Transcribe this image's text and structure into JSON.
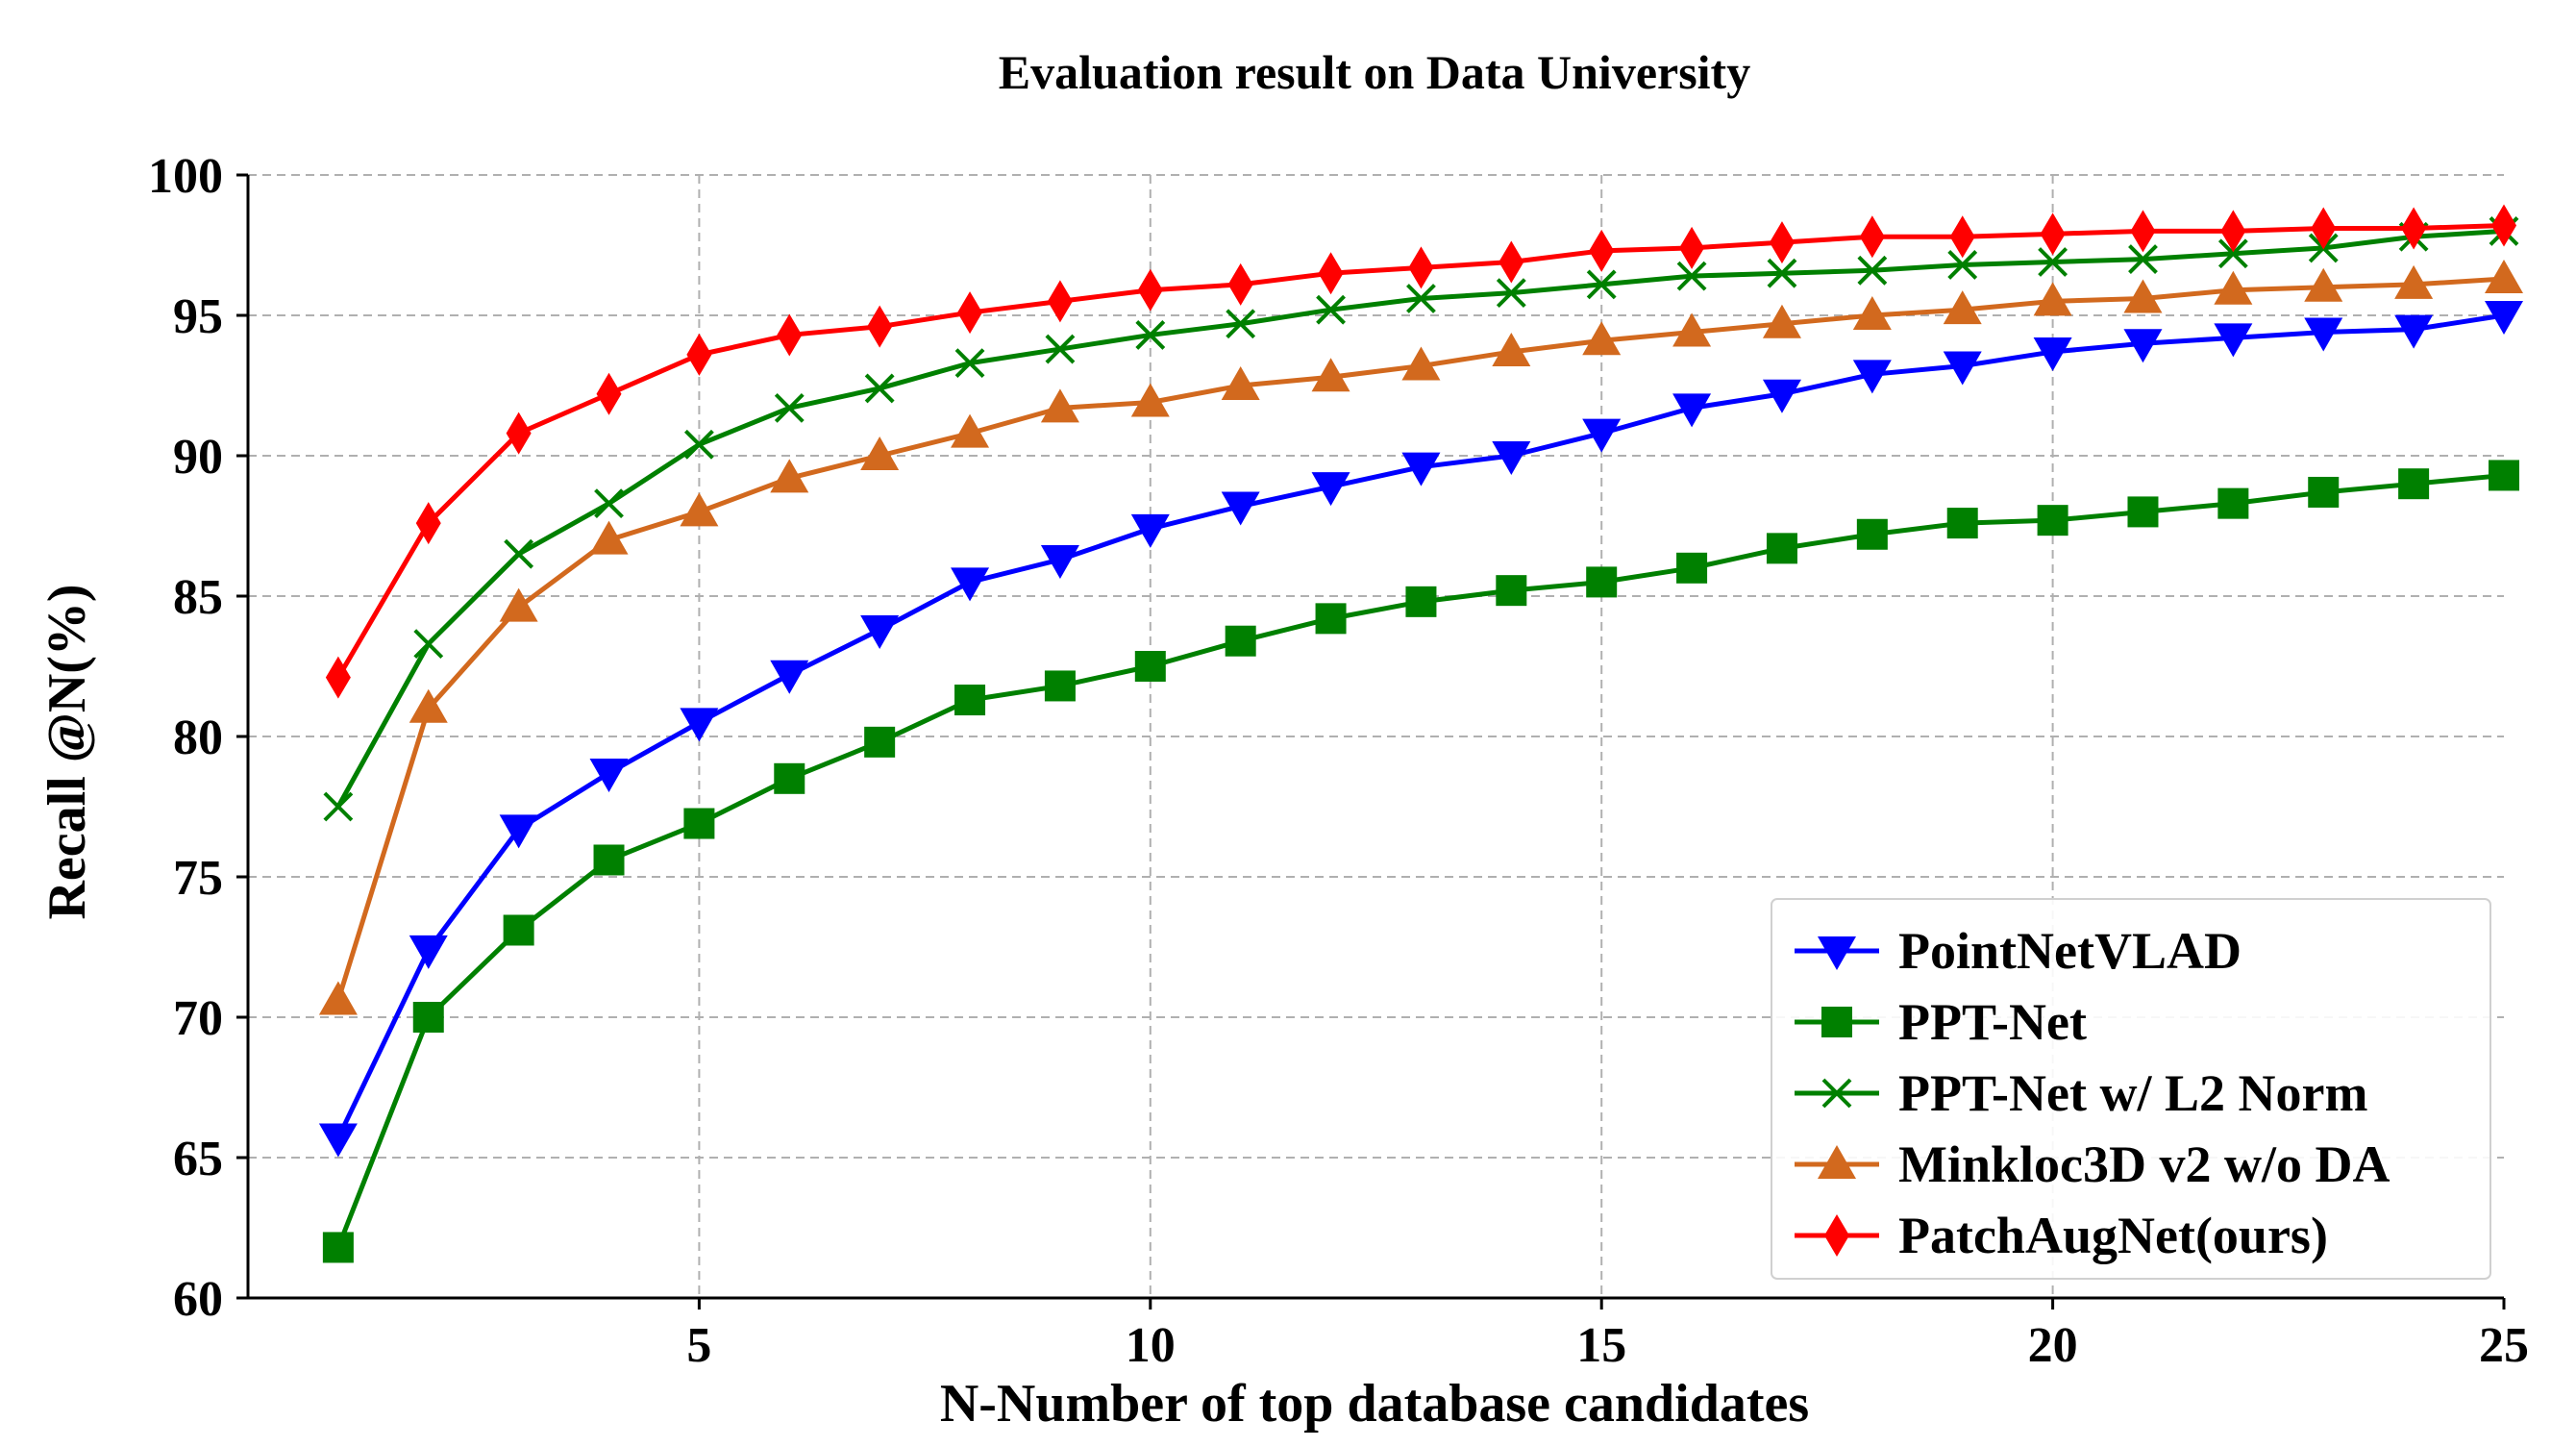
{
  "chart_data": {
    "type": "line",
    "title": "Evaluation result on Data University",
    "xlabel": "N-Number of top database candidates",
    "ylabel": "Recall @N(%)",
    "xlim": [
      0,
      25
    ],
    "ylim": [
      60,
      100
    ],
    "xticks": [
      5,
      10,
      15,
      20,
      25
    ],
    "yticks": [
      60,
      65,
      70,
      75,
      80,
      85,
      90,
      95,
      100
    ],
    "grid": true,
    "legend_position": "lower-right",
    "x": [
      1,
      2,
      3,
      4,
      5,
      6,
      7,
      8,
      9,
      10,
      11,
      12,
      13,
      14,
      15,
      16,
      17,
      18,
      19,
      20,
      21,
      22,
      23,
      24,
      25
    ],
    "series": [
      {
        "name": "PointNetVLAD",
        "color": "#0000ff",
        "marker": "triangle-down",
        "values": [
          65.7,
          72.4,
          76.7,
          78.7,
          80.5,
          82.2,
          83.8,
          85.5,
          86.3,
          87.4,
          88.2,
          88.9,
          89.6,
          90.0,
          90.8,
          91.7,
          92.2,
          92.9,
          93.2,
          93.7,
          94.0,
          94.2,
          94.4,
          94.5,
          95.0
        ]
      },
      {
        "name": "PPT-Net",
        "color": "#008000",
        "marker": "square",
        "values": [
          61.8,
          70.0,
          73.1,
          75.6,
          76.9,
          78.5,
          79.8,
          81.3,
          81.8,
          82.5,
          83.4,
          84.2,
          84.8,
          85.2,
          85.5,
          86.0,
          86.7,
          87.2,
          87.6,
          87.7,
          88.0,
          88.3,
          88.7,
          89.0,
          89.3
        ]
      },
      {
        "name": "PPT-Net w/ L2 Norm",
        "color": "#008000",
        "marker": "x",
        "values": [
          77.5,
          83.3,
          86.5,
          88.3,
          90.4,
          91.7,
          92.4,
          93.3,
          93.8,
          94.3,
          94.7,
          95.2,
          95.6,
          95.8,
          96.1,
          96.4,
          96.5,
          96.6,
          96.8,
          96.9,
          97.0,
          97.2,
          97.4,
          97.8,
          98.0
        ]
      },
      {
        "name": "Minkloc3D v2 w/o DA",
        "color": "#d2691e",
        "marker": "triangle-up",
        "values": [
          70.6,
          81.0,
          84.6,
          87.0,
          88.0,
          89.2,
          90.0,
          90.8,
          91.7,
          91.9,
          92.5,
          92.8,
          93.2,
          93.7,
          94.1,
          94.4,
          94.7,
          95.0,
          95.2,
          95.5,
          95.6,
          95.9,
          96.0,
          96.1,
          96.3
        ]
      },
      {
        "name": "PatchAugNet(ours)",
        "color": "#ff0000",
        "marker": "diamond",
        "values": [
          82.1,
          87.6,
          90.8,
          92.2,
          93.6,
          94.3,
          94.6,
          95.1,
          95.5,
          95.9,
          96.1,
          96.5,
          96.7,
          96.9,
          97.3,
          97.4,
          97.6,
          97.8,
          97.8,
          97.9,
          98.0,
          98.0,
          98.1,
          98.1,
          98.2
        ]
      }
    ]
  }
}
